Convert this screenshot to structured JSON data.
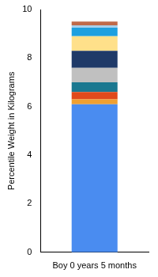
{
  "chart_data": {
    "type": "bar",
    "y_label": "Percentile Weight in Kilograms",
    "categories": [
      "Boy 0 years 5 months"
    ],
    "series": [
      {
        "color": "#4a8cf0",
        "values": [
          6.1
        ]
      },
      {
        "color": "#f0a030",
        "values": [
          0.2
        ]
      },
      {
        "color": "#e04a1c",
        "values": [
          0.3
        ]
      },
      {
        "color": "#1a7890",
        "values": [
          0.4
        ]
      },
      {
        "color": "#c0c0c0",
        "values": [
          0.6
        ]
      },
      {
        "color": "#1f3a68",
        "values": [
          0.7
        ]
      },
      {
        "color": "#ffe08a",
        "values": [
          0.6
        ]
      },
      {
        "color": "#1ea0e0",
        "values": [
          0.35
        ]
      },
      {
        "color": "#a8d0ec",
        "values": [
          0.1
        ]
      },
      {
        "color": "#c06a4a",
        "values": [
          0.15
        ]
      }
    ],
    "stacked": true,
    "ylim": [
      0,
      10
    ],
    "yticks": [
      0,
      2,
      4,
      6,
      8,
      10
    ],
    "grid": false
  }
}
